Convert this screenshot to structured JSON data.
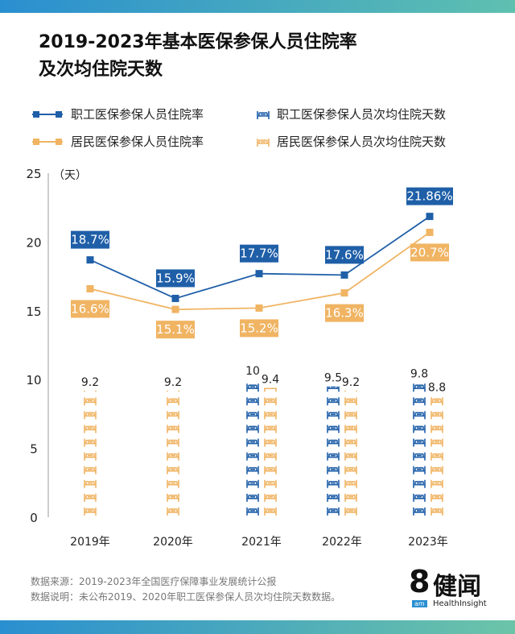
{
  "title_lines": [
    "2019-2023年基本医保参保人员住院率",
    "及次均住院天数"
  ],
  "legend": [
    {
      "name": "职工医保参保人员住院率",
      "kind": "line",
      "color": "#1f5fa8"
    },
    {
      "name": "职工医保参保人员次均住院天数",
      "kind": "bed",
      "color": "#1f5fa8"
    },
    {
      "name": "居民医保参保人员住院率",
      "kind": "line",
      "color": "#f0b463"
    },
    {
      "name": "居民医保参保人员次均住院天数",
      "kind": "bed",
      "color": "#f0b463"
    }
  ],
  "chart_data": {
    "type": "line+pictograph-bar",
    "categories": [
      "2019年",
      "2020年",
      "2021年",
      "2022年",
      "2023年"
    ],
    "ylabel": "（天）",
    "ylim": [
      0,
      25
    ],
    "yticks": [
      0,
      5,
      10,
      15,
      20,
      25
    ],
    "series": [
      {
        "name": "职工医保参保人员住院率",
        "type": "line",
        "color": "#1f5fa8",
        "values": [
          18.7,
          15.9,
          17.7,
          17.6,
          21.86
        ],
        "labels": [
          "18.7%",
          "15.9%",
          "17.7%",
          "17.6%",
          "21.86%"
        ]
      },
      {
        "name": "居民医保参保人员住院率",
        "type": "line",
        "color": "#f0b463",
        "values": [
          16.6,
          15.1,
          15.2,
          16.3,
          20.7
        ],
        "labels": [
          "16.6%",
          "15.1%",
          "15.2%",
          "16.3%",
          "20.7%"
        ]
      },
      {
        "name": "职工医保参保人员次均住院天数",
        "type": "pictograph",
        "icon": "bed-icon",
        "color": "#1f5fa8",
        "values": [
          null,
          null,
          10,
          9.5,
          9.8
        ],
        "labels": [
          "",
          "",
          "10",
          "9.5",
          "9.8"
        ]
      },
      {
        "name": "居民医保参保人员次均住院天数",
        "type": "pictograph",
        "icon": "bed-icon",
        "color": "#f0b463",
        "values": [
          9.2,
          9.2,
          9.4,
          9.2,
          8.8
        ],
        "labels": [
          "9.2",
          "9.2",
          "9.4",
          "9.2",
          "8.8"
        ]
      }
    ]
  },
  "footer": {
    "source": "数据来源：2019-2023年全国医疗保障事业发展统计公报",
    "note": "数据说明：未公布2019、2020年职工医保参保人员次均住院天数数据。"
  },
  "logo": {
    "mark": "8",
    "name": "健闻",
    "sub": "HealthInsight",
    "am": "am"
  }
}
